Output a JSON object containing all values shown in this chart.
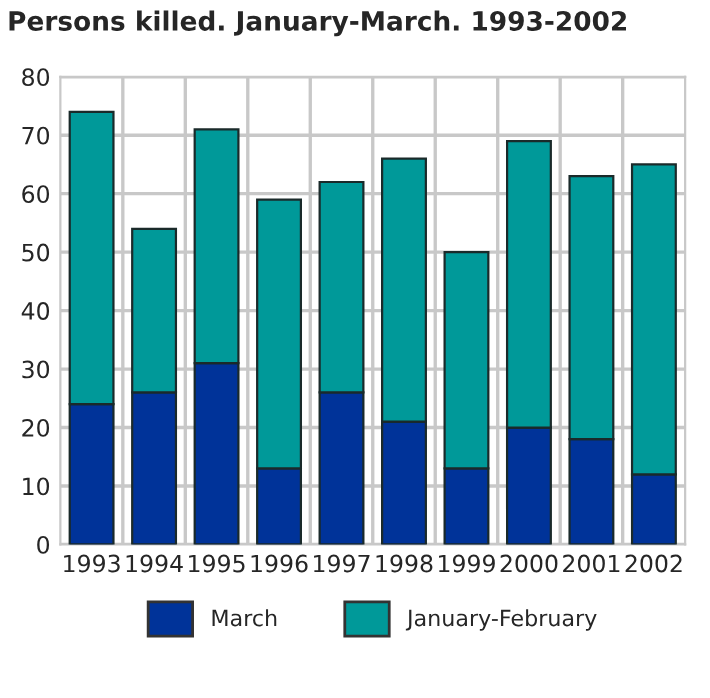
{
  "chart_data": {
    "type": "bar",
    "title": "Persons killed. January-March. 1993-2002",
    "stacked": true,
    "categories": [
      "1993",
      "1994",
      "1995",
      "1996",
      "1997",
      "1998",
      "1999",
      "2000",
      "2001",
      "2002"
    ],
    "series": [
      {
        "name": "March",
        "color": "#003399",
        "values": [
          24,
          26,
          31,
          13,
          26,
          21,
          13,
          20,
          18,
          12
        ]
      },
      {
        "name": "January-February",
        "color": "#009999",
        "values": [
          50,
          28,
          40,
          46,
          36,
          45,
          37,
          49,
          45,
          53
        ]
      }
    ],
    "ylim": [
      0,
      80
    ],
    "yticks": [
      0,
      10,
      20,
      30,
      40,
      50,
      60,
      70,
      80
    ],
    "grid": true,
    "legend": "bottom"
  }
}
